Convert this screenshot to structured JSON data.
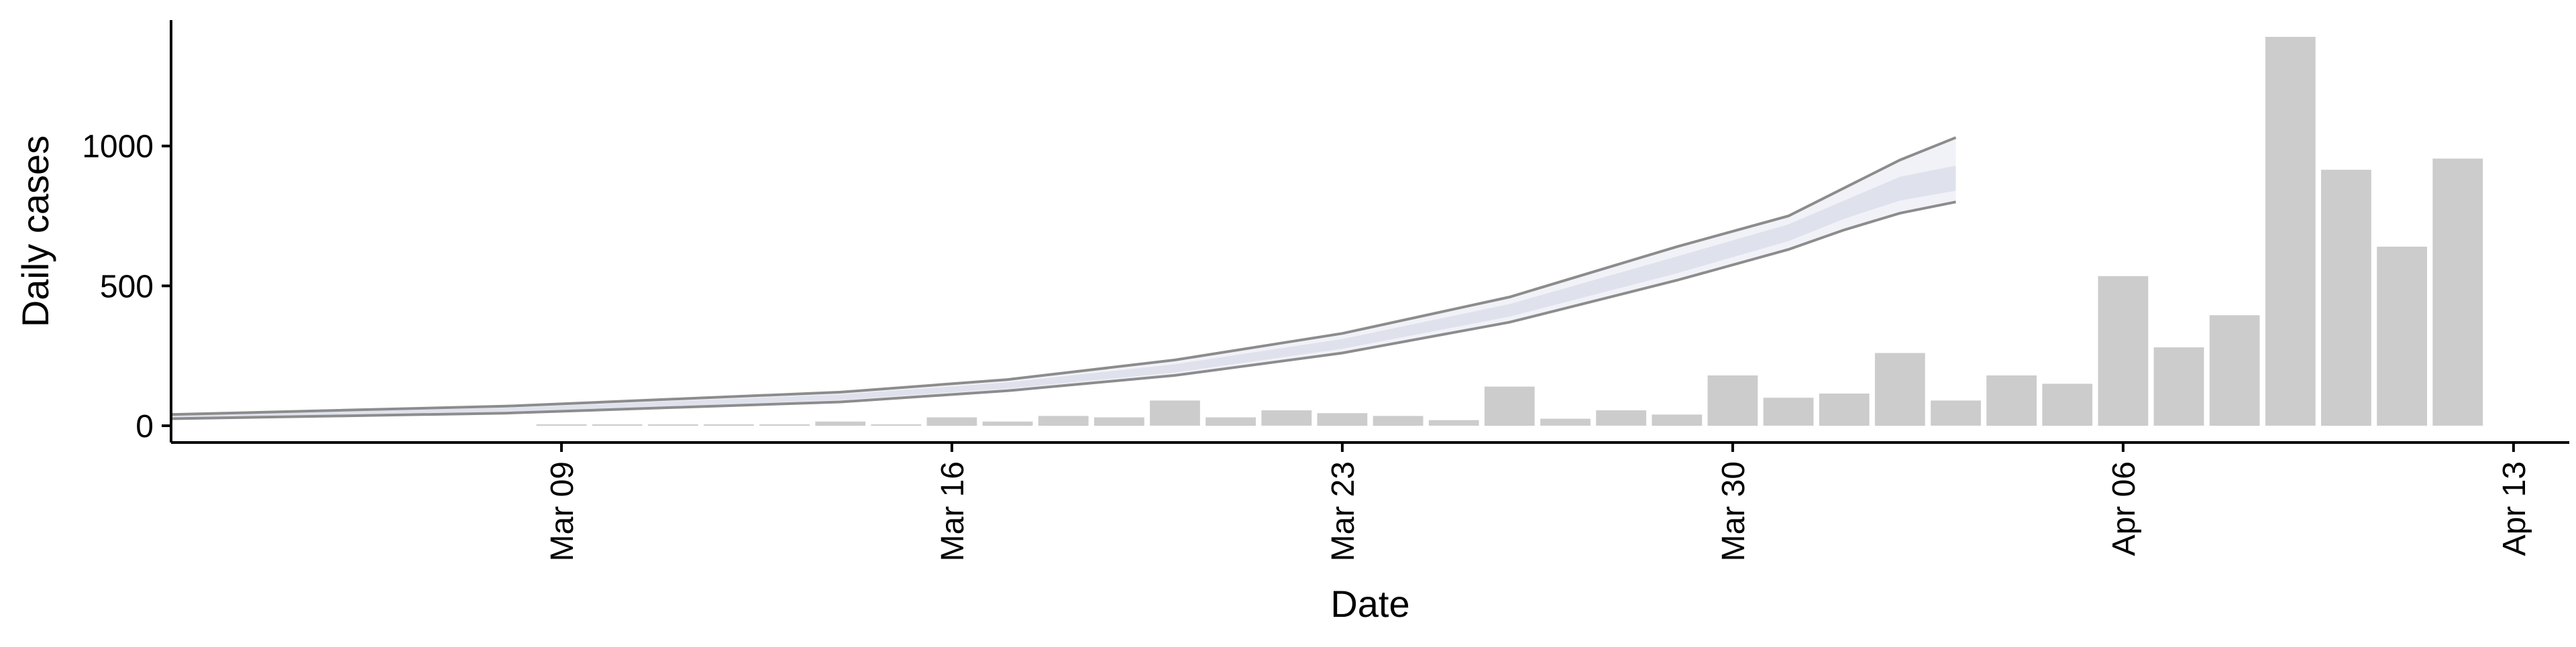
{
  "chart_data": {
    "type": "bar",
    "title": "",
    "xlabel": "Date",
    "ylabel": "Daily cases",
    "x_axis": {
      "kind": "date",
      "range": [
        "2020-03-02",
        "2020-04-14"
      ],
      "tick_dates": [
        "2020-03-09",
        "2020-03-16",
        "2020-03-23",
        "2020-03-30",
        "2020-04-06",
        "2020-04-13"
      ],
      "tick_labels": [
        "Mar 09",
        "Mar 16",
        "Mar 23",
        "Mar 30",
        "Apr 06",
        "Apr 13"
      ]
    },
    "y_axis": {
      "ylim": [
        -60,
        1450
      ],
      "ticks": [
        0,
        500,
        1000
      ],
      "tick_labels": [
        "0",
        "500",
        "1000"
      ]
    },
    "grid": false,
    "legend": "none",
    "bars": {
      "color": "#cccccc",
      "dates": [
        "2020-03-09",
        "2020-03-10",
        "2020-03-11",
        "2020-03-12",
        "2020-03-13",
        "2020-03-14",
        "2020-03-15",
        "2020-03-16",
        "2020-03-17",
        "2020-03-18",
        "2020-03-19",
        "2020-03-20",
        "2020-03-21",
        "2020-03-22",
        "2020-03-23",
        "2020-03-24",
        "2020-03-25",
        "2020-03-26",
        "2020-03-27",
        "2020-03-28",
        "2020-03-29",
        "2020-03-30",
        "2020-03-31",
        "2020-04-01",
        "2020-04-02",
        "2020-04-03",
        "2020-04-04",
        "2020-04-05",
        "2020-04-06",
        "2020-04-07",
        "2020-04-08",
        "2020-04-09",
        "2020-04-10",
        "2020-04-11",
        "2020-04-12"
      ],
      "values": [
        5,
        5,
        5,
        5,
        5,
        15,
        5,
        30,
        15,
        35,
        30,
        90,
        30,
        55,
        45,
        35,
        20,
        140,
        25,
        55,
        40,
        180,
        100,
        115,
        260,
        90,
        180,
        150,
        535,
        280,
        395,
        1390,
        915,
        640,
        955
      ]
    },
    "series": [
      {
        "type": "band",
        "color": "#e9ebf2",
        "opacity": 0.65,
        "dates": [
          "2020-03-02",
          "2020-03-05",
          "2020-03-08",
          "2020-03-11",
          "2020-03-14",
          "2020-03-17",
          "2020-03-20",
          "2020-03-23",
          "2020-03-26",
          "2020-03-29",
          "2020-03-31",
          "2020-04-01",
          "2020-04-02",
          "2020-04-03"
        ],
        "lower": [
          25,
          35,
          45,
          65,
          85,
          125,
          180,
          260,
          370,
          520,
          630,
          700,
          760,
          800
        ],
        "upper": [
          40,
          55,
          70,
          95,
          120,
          165,
          235,
          330,
          460,
          640,
          750,
          850,
          950,
          1030
        ]
      },
      {
        "type": "band",
        "color": "#d8dcea",
        "opacity": 0.75,
        "dates": [
          "2020-03-02",
          "2020-03-05",
          "2020-03-08",
          "2020-03-11",
          "2020-03-14",
          "2020-03-17",
          "2020-03-20",
          "2020-03-23",
          "2020-03-26",
          "2020-03-29",
          "2020-03-31",
          "2020-04-01",
          "2020-04-02",
          "2020-04-03"
        ],
        "lower": [
          28,
          39,
          50,
          70,
          92,
          133,
          190,
          275,
          390,
          545,
          660,
          740,
          805,
          840
        ],
        "upper": [
          36,
          50,
          64,
          88,
          112,
          155,
          220,
          310,
          435,
          605,
          720,
          805,
          890,
          930
        ]
      },
      {
        "type": "line",
        "color": "#8c8c8c",
        "dates": [
          "2020-03-02",
          "2020-03-05",
          "2020-03-08",
          "2020-03-11",
          "2020-03-14",
          "2020-03-17",
          "2020-03-20",
          "2020-03-23",
          "2020-03-26",
          "2020-03-29",
          "2020-03-31",
          "2020-04-01",
          "2020-04-02",
          "2020-04-03"
        ],
        "values": [
          40,
          55,
          70,
          95,
          120,
          165,
          235,
          330,
          460,
          640,
          750,
          850,
          950,
          1030
        ]
      },
      {
        "type": "line",
        "color": "#8c8c8c",
        "dates": [
          "2020-03-02",
          "2020-03-05",
          "2020-03-08",
          "2020-03-11",
          "2020-03-14",
          "2020-03-17",
          "2020-03-20",
          "2020-03-23",
          "2020-03-26",
          "2020-03-29",
          "2020-03-31",
          "2020-04-01",
          "2020-04-02",
          "2020-04-03"
        ],
        "values": [
          25,
          35,
          45,
          65,
          85,
          125,
          180,
          260,
          370,
          520,
          630,
          700,
          760,
          800
        ]
      }
    ]
  }
}
